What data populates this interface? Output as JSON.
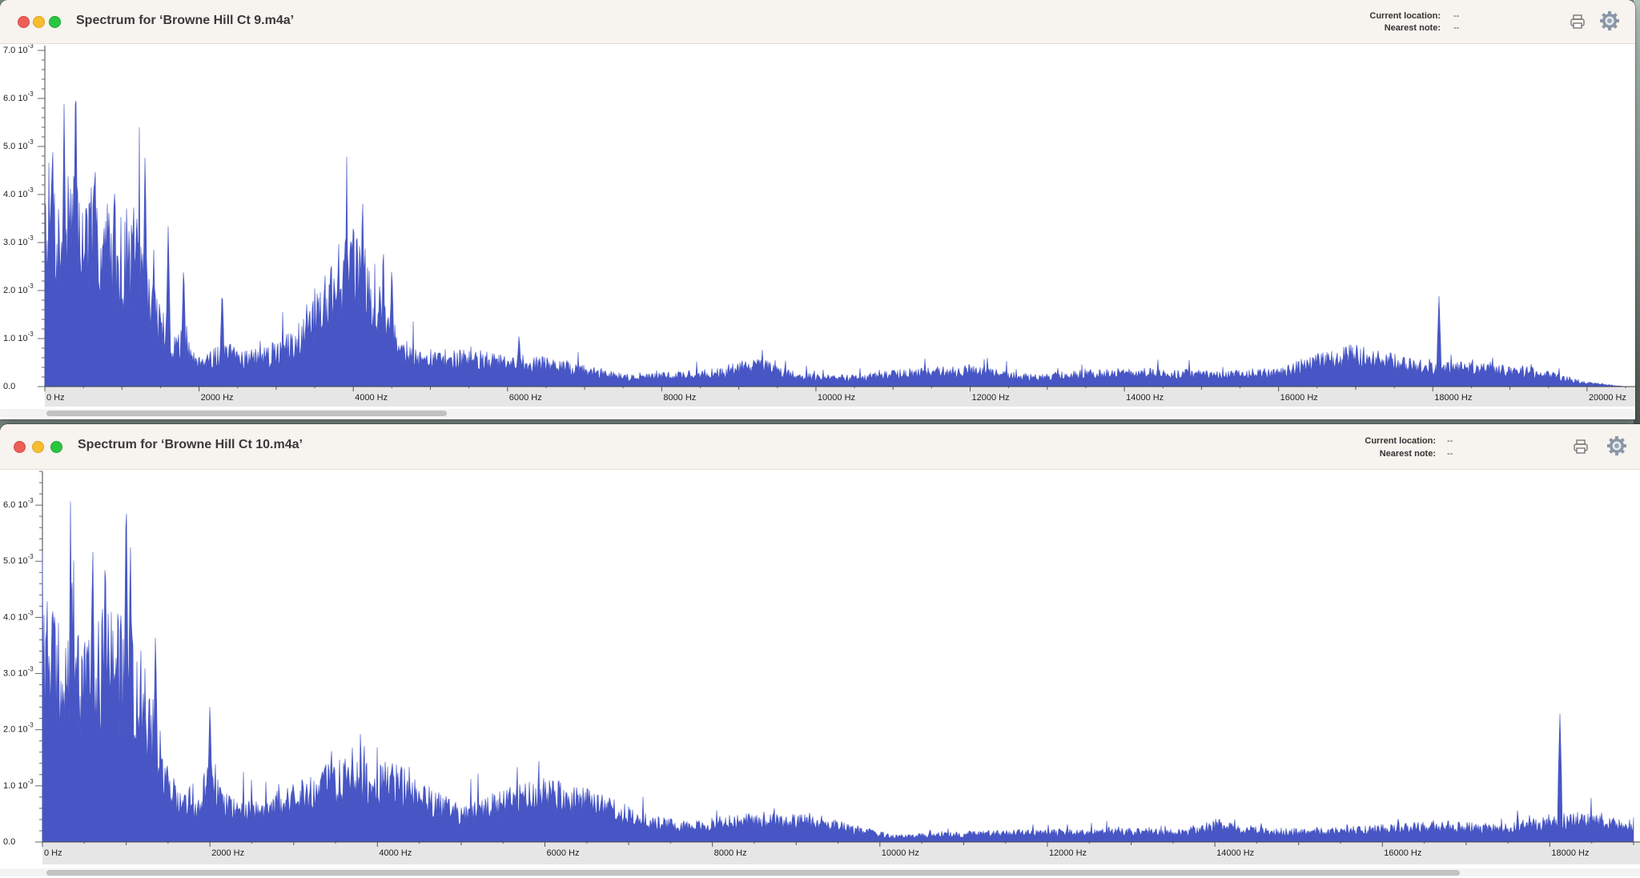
{
  "windows": [
    {
      "title": "Spectrum for ‘Browne Hill Ct 9.m4a’",
      "info": {
        "location_label": "Current location:",
        "location_value": "--",
        "note_label": "Nearest note:",
        "note_value": "--"
      },
      "tools": [
        "print-icon",
        "gear-icon"
      ],
      "scroll_fraction": 0.25
    },
    {
      "title": "Spectrum for ‘Browne Hill Ct 10.m4a’",
      "info": {
        "location_label": "Current location:",
        "location_value": "--",
        "note_label": "Nearest note:",
        "note_value": "--"
      },
      "tools": [
        "print-icon",
        "gear-icon"
      ],
      "scroll_fraction": 0.9
    }
  ],
  "colors": {
    "spectrum_fill": "#4756c4",
    "titlebar": "#f7f3ee",
    "ruler": "#e6e6e6"
  },
  "chart_data": [
    {
      "type": "area",
      "x_unit": "Hz",
      "xlim": [
        0,
        20500
      ],
      "ylim": [
        0,
        0.0071
      ],
      "x_ticks": [
        {
          "value": 0,
          "label": "0 Hz"
        },
        {
          "value": 2000,
          "label": "2000 Hz"
        },
        {
          "value": 4000,
          "label": "4000 Hz"
        },
        {
          "value": 6000,
          "label": "6000 Hz"
        },
        {
          "value": 8000,
          "label": "8000 Hz"
        },
        {
          "value": 10000,
          "label": "10000 Hz"
        },
        {
          "value": 12000,
          "label": "12000 Hz"
        },
        {
          "value": 14000,
          "label": "14000 Hz"
        },
        {
          "value": 16000,
          "label": "16000 Hz"
        },
        {
          "value": 18000,
          "label": "18000 Hz"
        },
        {
          "value": 20000,
          "label": "20000 Hz"
        }
      ],
      "y_ticks": [
        {
          "value": 0,
          "mantissa": "0.0",
          "exp": ""
        },
        {
          "value": 0.001,
          "mantissa": "1.0 10",
          "exp": "-3"
        },
        {
          "value": 0.002,
          "mantissa": "2.0 10",
          "exp": "-3"
        },
        {
          "value": 0.003,
          "mantissa": "3.0 10",
          "exp": "-3"
        },
        {
          "value": 0.004,
          "mantissa": "4.0 10",
          "exp": "-3"
        },
        {
          "value": 0.005,
          "mantissa": "5.0 10",
          "exp": "-3"
        },
        {
          "value": 0.006,
          "mantissa": "6.0 10",
          "exp": "-3"
        },
        {
          "value": 0.007,
          "mantissa": "7.0 10",
          "exp": "-3"
        }
      ],
      "envelope": [
        [
          0,
          0.0038
        ],
        [
          200,
          0.0032
        ],
        [
          400,
          0.0035
        ],
        [
          600,
          0.0032
        ],
        [
          800,
          0.0031
        ],
        [
          1000,
          0.0028
        ],
        [
          1200,
          0.0026
        ],
        [
          1400,
          0.0018
        ],
        [
          1600,
          0.001
        ],
        [
          1800,
          0.0008
        ],
        [
          2000,
          0.0006
        ],
        [
          2400,
          0.0007
        ],
        [
          2800,
          0.0006
        ],
        [
          3200,
          0.0009
        ],
        [
          3500,
          0.0016
        ],
        [
          3800,
          0.0024
        ],
        [
          4000,
          0.0026
        ],
        [
          4200,
          0.0021
        ],
        [
          4400,
          0.0016
        ],
        [
          4600,
          0.001
        ],
        [
          4800,
          0.0006
        ],
        [
          5200,
          0.0006
        ],
        [
          5600,
          0.0006
        ],
        [
          6000,
          0.0005
        ],
        [
          6400,
          0.0005
        ],
        [
          6800,
          0.0004
        ],
        [
          7200,
          0.0003
        ],
        [
          7600,
          0.0002
        ],
        [
          8200,
          0.00025
        ],
        [
          8800,
          0.0003
        ],
        [
          9200,
          0.0005
        ],
        [
          9600,
          0.0003
        ],
        [
          10000,
          0.0002
        ],
        [
          10600,
          0.0002
        ],
        [
          11200,
          0.0003
        ],
        [
          12000,
          0.00035
        ],
        [
          12800,
          0.0002
        ],
        [
          13600,
          0.0003
        ],
        [
          14400,
          0.0003
        ],
        [
          15200,
          0.00025
        ],
        [
          16000,
          0.0003
        ],
        [
          16600,
          0.0006
        ],
        [
          17000,
          0.0007
        ],
        [
          17600,
          0.0005
        ],
        [
          18000,
          0.0004
        ],
        [
          18800,
          0.0004
        ],
        [
          19400,
          0.0003
        ],
        [
          20000,
          8e-05
        ],
        [
          20500,
          0.0
        ]
      ],
      "peaks": [
        [
          400,
          0.0068
        ],
        [
          250,
          0.006
        ],
        [
          100,
          0.0054
        ],
        [
          650,
          0.005
        ],
        [
          900,
          0.0044
        ],
        [
          1300,
          0.005
        ],
        [
          1150,
          0.004
        ],
        [
          1600,
          0.0034
        ],
        [
          1800,
          0.0026
        ],
        [
          2300,
          0.0021
        ],
        [
          4120,
          0.0041
        ],
        [
          3900,
          0.0035
        ],
        [
          4500,
          0.0026
        ],
        [
          6150,
          0.0011
        ],
        [
          18080,
          0.0019
        ]
      ]
    },
    {
      "type": "area",
      "x_unit": "Hz",
      "xlim": [
        0,
        19000
      ],
      "ylim": [
        0,
        0.0066
      ],
      "x_ticks": [
        {
          "value": 0,
          "label": "0 Hz"
        },
        {
          "value": 2000,
          "label": "2000 Hz"
        },
        {
          "value": 4000,
          "label": "4000 Hz"
        },
        {
          "value": 6000,
          "label": "6000 Hz"
        },
        {
          "value": 8000,
          "label": "8000 Hz"
        },
        {
          "value": 10000,
          "label": "10000 Hz"
        },
        {
          "value": 12000,
          "label": "12000 Hz"
        },
        {
          "value": 14000,
          "label": "14000 Hz"
        },
        {
          "value": 16000,
          "label": "16000 Hz"
        },
        {
          "value": 18000,
          "label": "18000 Hz"
        }
      ],
      "y_ticks": [
        {
          "value": 0,
          "mantissa": "0.0",
          "exp": ""
        },
        {
          "value": 0.001,
          "mantissa": "1.0 10",
          "exp": "-3"
        },
        {
          "value": 0.002,
          "mantissa": "2.0 10",
          "exp": "-3"
        },
        {
          "value": 0.003,
          "mantissa": "3.0 10",
          "exp": "-3"
        },
        {
          "value": 0.004,
          "mantissa": "4.0 10",
          "exp": "-3"
        },
        {
          "value": 0.005,
          "mantissa": "5.0 10",
          "exp": "-3"
        },
        {
          "value": 0.006,
          "mantissa": "6.0 10",
          "exp": "-3"
        }
      ],
      "envelope": [
        [
          0,
          0.0035
        ],
        [
          200,
          0.003
        ],
        [
          400,
          0.0033
        ],
        [
          600,
          0.0034
        ],
        [
          800,
          0.0034
        ],
        [
          1000,
          0.003
        ],
        [
          1200,
          0.0026
        ],
        [
          1400,
          0.0016
        ],
        [
          1600,
          0.0008
        ],
        [
          1800,
          0.0005
        ],
        [
          2000,
          0.0013
        ],
        [
          2200,
          0.0007
        ],
        [
          2600,
          0.0006
        ],
        [
          3000,
          0.0008
        ],
        [
          3400,
          0.0011
        ],
        [
          3800,
          0.0012
        ],
        [
          4200,
          0.0011
        ],
        [
          4600,
          0.0008
        ],
        [
          5000,
          0.0005
        ],
        [
          5600,
          0.0008
        ],
        [
          6000,
          0.0009
        ],
        [
          6400,
          0.0008
        ],
        [
          6800,
          0.0006
        ],
        [
          7200,
          0.0004
        ],
        [
          7600,
          0.0003
        ],
        [
          8400,
          0.0004
        ],
        [
          9200,
          0.0004
        ],
        [
          9800,
          0.0002
        ],
        [
          10200,
          0.0001
        ],
        [
          11000,
          0.00015
        ],
        [
          12000,
          0.00018
        ],
        [
          12800,
          0.0002
        ],
        [
          13600,
          0.00018
        ],
        [
          14000,
          0.0003
        ],
        [
          14600,
          0.0002
        ],
        [
          15400,
          0.0002
        ],
        [
          16000,
          0.00025
        ],
        [
          16600,
          0.0003
        ],
        [
          17400,
          0.00025
        ],
        [
          18000,
          0.0004
        ],
        [
          18400,
          0.0004
        ],
        [
          19000,
          0.0003
        ]
      ],
      "peaks": [
        [
          1000,
          0.0065
        ],
        [
          1050,
          0.0055
        ],
        [
          600,
          0.0055
        ],
        [
          750,
          0.0054
        ],
        [
          350,
          0.0051
        ],
        [
          120,
          0.0046
        ],
        [
          1350,
          0.0038
        ],
        [
          2000,
          0.0025
        ],
        [
          3450,
          0.0017
        ],
        [
          3700,
          0.0017
        ],
        [
          6100,
          0.0011
        ],
        [
          18120,
          0.0023
        ]
      ]
    }
  ]
}
